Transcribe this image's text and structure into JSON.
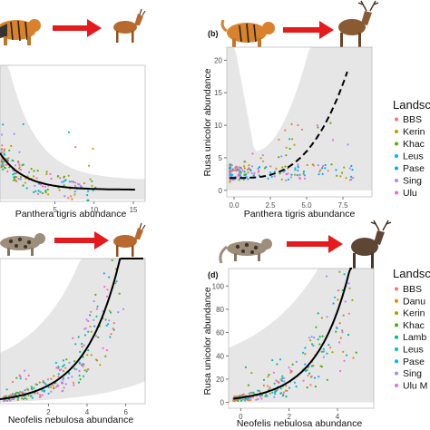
{
  "figure": {
    "colors": {
      "band": "#e6e6e6",
      "curve": "#000000",
      "arrow": "#e41a1c",
      "tiger": "#d9822b",
      "deer": "#8a5a32",
      "clouded_leopard": "#9c8e7a",
      "muntjac": "#b86a2e"
    }
  },
  "chart_data": [
    {
      "id": "a",
      "type": "scatter",
      "panel_label": "",
      "xlabel": "Panthera tigris abundance",
      "ylabel": "",
      "x_ticks": [
        "5",
        "10",
        "15"
      ],
      "y_ticks": [],
      "xlim": [
        -2,
        16.5
      ],
      "ylim": [
        0,
        14
      ],
      "fit": "decreasing",
      "band": "wide",
      "icons": [
        "tiger-icon",
        "muntjac-icon"
      ]
    },
    {
      "id": "b",
      "type": "scatter",
      "panel_label": "(b)",
      "xlabel": "Panthera tigris abundance",
      "ylabel": "Rusa unicolor abundance",
      "x_ticks": [
        "0.0",
        "2.5",
        "5.0",
        "7.5"
      ],
      "y_ticks": [
        "0",
        "5",
        "10",
        "15",
        "20"
      ],
      "xlim": [
        -0.5,
        9.5
      ],
      "ylim": [
        -1,
        22
      ],
      "fit": "increasing-dashed",
      "band": "wide",
      "legend_title": "Landsc",
      "legend": [
        {
          "name": "BBS",
          "color": "#f8766d"
        },
        {
          "name": "Kerin",
          "color": "#c49a00"
        },
        {
          "name": "Khac",
          "color": "#53b400"
        },
        {
          "name": "Leus",
          "color": "#00b6eb"
        },
        {
          "name": "Pase",
          "color": "#00a6ff"
        },
        {
          "name": "Sing",
          "color": "#a58aff"
        },
        {
          "name": "Ulu",
          "color": "#fb61d7"
        }
      ],
      "icons": [
        "tiger-icon",
        "sambar-deer-icon"
      ]
    },
    {
      "id": "c",
      "type": "scatter",
      "panel_label": "",
      "xlabel": "Neofelis nebulosa abundance",
      "ylabel": "",
      "x_ticks": [
        "2",
        "4",
        "6"
      ],
      "y_ticks": [],
      "xlim": [
        -0.5,
        7
      ],
      "ylim": [
        0,
        30
      ],
      "fit": "exponential",
      "band": "wide",
      "icons": [
        "clouded-leopard-icon",
        "muntjac-icon"
      ]
    },
    {
      "id": "d",
      "type": "scatter",
      "panel_label": "(d)",
      "xlabel": "Neofelis nebulosa abundance",
      "ylabel": "Rusa unicolor abundance",
      "x_ticks": [
        "0",
        "2",
        "4"
      ],
      "y_ticks": [
        "0",
        "20",
        "40",
        "60",
        "80",
        "100"
      ],
      "xlim": [
        -0.5,
        5.5
      ],
      "ylim": [
        -5,
        115
      ],
      "fit": "exponential",
      "band": "wide",
      "legend_title": "Landsc",
      "legend": [
        {
          "name": "BBS",
          "color": "#f8766d"
        },
        {
          "name": "Danu",
          "color": "#d89000"
        },
        {
          "name": "Kerin",
          "color": "#a3a500"
        },
        {
          "name": "Khac",
          "color": "#39b600"
        },
        {
          "name": "Lamb",
          "color": "#00bf7d"
        },
        {
          "name": "Leus",
          "color": "#00bfc4"
        },
        {
          "name": "Pase",
          "color": "#00b0f6"
        },
        {
          "name": "Sing",
          "color": "#9590ff"
        },
        {
          "name": "Ulu M",
          "color": "#e76bf3"
        }
      ],
      "icons": [
        "clouded-leopard-icon",
        "sambar-deer-icon"
      ]
    }
  ]
}
